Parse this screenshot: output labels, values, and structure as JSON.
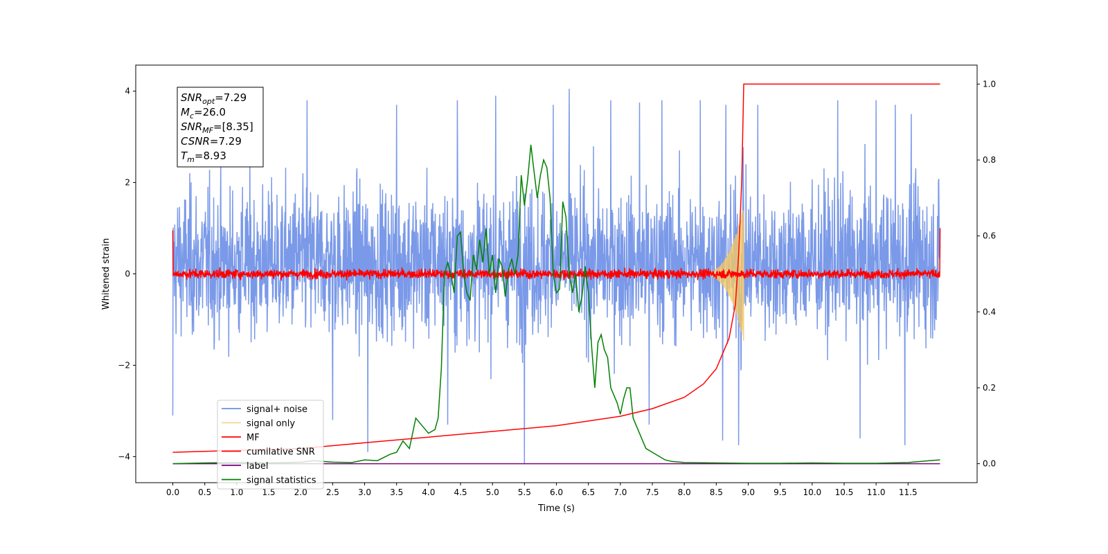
{
  "chart_data": {
    "type": "line",
    "title": "",
    "xlabel": "Time (s)",
    "ylabel": "Whitened strain",
    "y2label": "",
    "xlim": [
      -0.58,
      12.58
    ],
    "ylim": [
      -4.57,
      4.57
    ],
    "y2lim": [
      -0.05,
      1.05
    ],
    "x_ticks": [
      "0.0",
      "0.5",
      "1.0",
      "1.5",
      "2.0",
      "2.5",
      "3.0",
      "3.5",
      "4.0",
      "4.5",
      "5.0",
      "5.5",
      "6.0",
      "6.5",
      "7.0",
      "7.5",
      "8.0",
      "8.5",
      "9.0",
      "9.5",
      "10.0",
      "10.5",
      "11.0",
      "11.5"
    ],
    "y_ticks": [
      "4",
      "2",
      "0",
      "−2",
      "−4"
    ],
    "y2_ticks": [
      "1.0",
      "0.8",
      "0.6",
      "0.4",
      "0.2",
      "0.0"
    ],
    "grid": false,
    "legend_position": "lower-left",
    "annotation": {
      "lines": [
        {
          "sym": "SNR",
          "sub": "opt",
          "val": "=7.29"
        },
        {
          "sym": "M",
          "sub": "c",
          "val": "=26.0"
        },
        {
          "sym": "SNR",
          "sub": "MF",
          "val": "=[8.35]"
        },
        {
          "sym": "CSNR",
          "sub": "",
          "val": "=7.29"
        },
        {
          "sym": "T",
          "sub": "m",
          "val": "=8.93"
        }
      ]
    },
    "series": [
      {
        "name": "signal+ noise",
        "axis": "left",
        "color": "#6c8ee6",
        "description": "whitened noise with injected signal, amplitude roughly within -3 to 4",
        "noise_amp": 1.2,
        "spikes": [
          [
            2.1,
            3.8
          ],
          [
            3.5,
            3.7
          ],
          [
            4.45,
            3.8
          ],
          [
            5.05,
            3.9
          ],
          [
            5.5,
            4.05
          ],
          [
            5.95,
            3.7
          ],
          [
            6.2,
            4.05
          ],
          [
            6.85,
            3.8
          ],
          [
            7.3,
            3.75
          ],
          [
            7.65,
            3.8
          ],
          [
            8.25,
            3.8
          ],
          [
            8.65,
            3.7
          ],
          [
            9.15,
            3.7
          ],
          [
            10.4,
            3.8
          ],
          [
            11.0,
            3.8
          ],
          [
            11.3,
            3.7
          ],
          [
            11.55,
            3.5
          ],
          [
            3.05,
            -3.9
          ],
          [
            5.5,
            -4.15
          ],
          [
            8.6,
            -3.65
          ],
          [
            8.85,
            -3.75
          ],
          [
            10.75,
            -3.6
          ],
          [
            11.45,
            -3.75
          ],
          [
            0.0,
            -3.1
          ],
          [
            2.5,
            -3.2
          ],
          [
            4.3,
            -3.3
          ],
          [
            7.45,
            -3.3
          ]
        ]
      },
      {
        "name": "signal only",
        "axis": "left",
        "color": "#f2c766",
        "description": "chirp signal peaking at merger time",
        "merger_time": 8.93,
        "peak_amp": 1.5
      },
      {
        "name": "MF",
        "axis": "left",
        "color": "#ff0000",
        "description": "matched filter output around zero",
        "noise_amp": 0.12,
        "start_value": 0.95,
        "end_value": 1.0
      },
      {
        "name": "cumilative SNR",
        "axis": "right",
        "color": "#ff0000",
        "description": "cumulative normalized SNR rising to 1.0 at merger",
        "x": [
          0.0,
          1.0,
          2.0,
          3.0,
          4.0,
          5.0,
          6.0,
          7.0,
          7.5,
          8.0,
          8.3,
          8.5,
          8.7,
          8.8,
          8.85,
          8.9,
          8.93,
          9.0,
          12.0
        ],
        "y": [
          0.03,
          0.035,
          0.04,
          0.055,
          0.07,
          0.085,
          0.1,
          0.125,
          0.145,
          0.175,
          0.21,
          0.25,
          0.33,
          0.42,
          0.55,
          0.75,
          1.0,
          1.0,
          1.0
        ]
      },
      {
        "name": "label",
        "axis": "right",
        "color": "#800080",
        "description": "constant zero label",
        "x": [
          0.0,
          12.0
        ],
        "y": [
          0.0,
          0.0
        ]
      },
      {
        "name": "signal statistics",
        "axis": "right",
        "color": "#008000",
        "x": [
          0.0,
          0.5,
          1.0,
          1.5,
          2.0,
          2.2,
          2.5,
          2.8,
          3.0,
          3.2,
          3.4,
          3.5,
          3.6,
          3.7,
          3.8,
          3.9,
          4.0,
          4.1,
          4.15,
          4.2,
          4.25,
          4.3,
          4.35,
          4.4,
          4.45,
          4.5,
          4.55,
          4.6,
          4.65,
          4.7,
          4.75,
          4.8,
          4.85,
          4.9,
          4.95,
          5.0,
          5.05,
          5.1,
          5.15,
          5.2,
          5.25,
          5.3,
          5.35,
          5.4,
          5.45,
          5.5,
          5.55,
          5.6,
          5.65,
          5.7,
          5.75,
          5.8,
          5.85,
          5.9,
          5.95,
          6.0,
          6.05,
          6.1,
          6.15,
          6.2,
          6.25,
          6.3,
          6.35,
          6.4,
          6.45,
          6.5,
          6.55,
          6.6,
          6.65,
          6.7,
          6.75,
          6.8,
          6.85,
          6.9,
          6.95,
          7.0,
          7.05,
          7.1,
          7.15,
          7.2,
          7.25,
          7.3,
          7.35,
          7.4,
          7.5,
          7.6,
          7.7,
          7.8,
          8.0,
          8.5,
          9.0,
          9.5,
          10.0,
          10.5,
          11.0,
          11.5,
          11.9,
          12.0
        ],
        "y": [
          0.0,
          0.002,
          0.003,
          0.002,
          0.004,
          0.008,
          0.004,
          0.003,
          0.01,
          0.008,
          0.025,
          0.03,
          0.06,
          0.04,
          0.12,
          0.1,
          0.08,
          0.09,
          0.12,
          0.25,
          0.5,
          0.53,
          0.5,
          0.45,
          0.6,
          0.61,
          0.5,
          0.45,
          0.43,
          0.55,
          0.51,
          0.59,
          0.53,
          0.62,
          0.5,
          0.55,
          0.45,
          0.54,
          0.52,
          0.44,
          0.51,
          0.54,
          0.5,
          0.55,
          0.76,
          0.68,
          0.75,
          0.84,
          0.77,
          0.7,
          0.76,
          0.8,
          0.78,
          0.7,
          0.5,
          0.45,
          0.46,
          0.69,
          0.65,
          0.5,
          0.45,
          0.5,
          0.4,
          0.44,
          0.52,
          0.45,
          0.31,
          0.2,
          0.32,
          0.34,
          0.3,
          0.28,
          0.2,
          0.18,
          0.16,
          0.13,
          0.17,
          0.2,
          0.2,
          0.12,
          0.1,
          0.08,
          0.06,
          0.04,
          0.03,
          0.02,
          0.01,
          0.006,
          0.003,
          0.002,
          0.001,
          0.001,
          0.002,
          0.001,
          0.001,
          0.003,
          0.009,
          0.01
        ]
      }
    ]
  }
}
